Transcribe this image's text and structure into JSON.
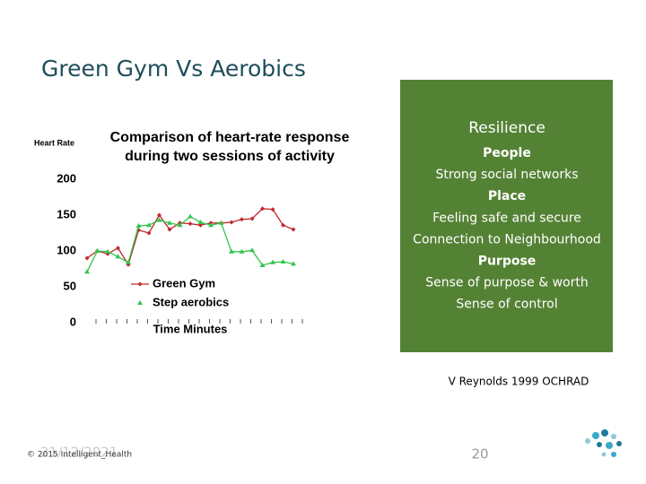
{
  "slide": {
    "title": "Green Gym Vs Aerobics",
    "citation": "V Reynolds 1999 OCHRAD",
    "copyright": "© 2015 Intelligent_Health",
    "date": "21/12/2021",
    "page_number": "20"
  },
  "panel": {
    "heading": "Resilience",
    "items": [
      {
        "text": "People",
        "bold": true
      },
      {
        "text": "Strong social networks",
        "bold": false
      },
      {
        "text": "Place",
        "bold": true
      },
      {
        "text": "Feeling safe and secure",
        "bold": false
      },
      {
        "text": "Connection to Neighbourhood",
        "bold": false
      },
      {
        "text": "Purpose",
        "bold": true
      },
      {
        "text": "Sense of purpose & worth",
        "bold": false
      },
      {
        "text": "Sense of control",
        "bold": false
      }
    ]
  },
  "chart_data": {
    "type": "line",
    "title_lines": [
      "Comparison of heart-rate response",
      "during two sessions of activity"
    ],
    "y_label": "Heart Rate",
    "x_label": "Time Minutes",
    "categories": [
      null,
      null,
      null,
      null,
      null,
      null,
      null,
      null,
      null,
      null,
      null,
      null,
      null,
      null,
      null,
      null,
      null,
      null,
      null,
      null,
      null
    ],
    "ylim": [
      0,
      200
    ],
    "yticks": [
      0,
      50,
      100,
      150,
      200
    ],
    "series": [
      {
        "name": "Green Gym",
        "color": "#c0282d",
        "marker": "diamond",
        "values": [
          90,
          100,
          96,
          104,
          81,
          129,
          125,
          150,
          130,
          139,
          138,
          136,
          139,
          139,
          140,
          144,
          145,
          159,
          158,
          136,
          130
        ]
      },
      {
        "name": "Step aerobics",
        "color": "#33c44b",
        "marker": "triangle",
        "values": [
          71,
          100,
          99,
          92,
          84,
          135,
          136,
          143,
          139,
          136,
          148,
          140,
          136,
          139,
          99,
          99,
          101,
          80,
          84,
          85,
          82
        ]
      }
    ]
  }
}
